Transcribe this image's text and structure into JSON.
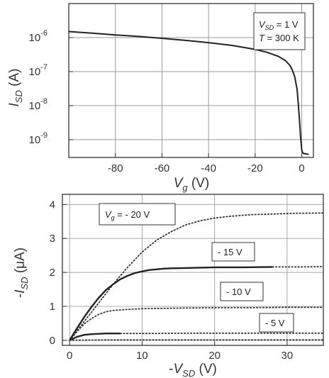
{
  "chart_data": [
    {
      "type": "line",
      "yscale": "log",
      "xlabel": {
        "main": "V",
        "sub": "g",
        "unit": " (V)"
      },
      "ylabel": {
        "main": "I",
        "sub": "SD",
        "unit": " (A)"
      },
      "xlim": [
        -100,
        5
      ],
      "ylim": [
        3e-10,
        1e-05
      ],
      "xticks": [
        -80,
        -60,
        -40,
        -20,
        0
      ],
      "yticks": [
        {
          "value": 1e-06,
          "base": "10",
          "exp": "-6"
        },
        {
          "value": 1e-07,
          "base": "10",
          "exp": "-7"
        },
        {
          "value": 1e-08,
          "base": "10",
          "exp": "-8"
        },
        {
          "value": 1e-09,
          "base": "10",
          "exp": "-9"
        }
      ],
      "grid": true,
      "annotation": {
        "line1": {
          "main": "V",
          "sub": "SD",
          "rest": " = 1 V"
        },
        "line2": {
          "main": "T",
          "rest": " = 300 K"
        }
      },
      "series": [
        {
          "style": "solid",
          "x": [
            -100,
            -90,
            -80,
            -70,
            -60,
            -50,
            -40,
            -30,
            -20,
            -15,
            -10,
            -7,
            -5,
            -4,
            -3,
            -2,
            -1.5,
            -1,
            -0.5,
            0,
            0.3,
            0.6,
            1,
            2,
            3
          ],
          "y": [
            1.5e-06,
            1.35e-06,
            1.2e-06,
            1.08e-06,
            9.5e-07,
            8.3e-07,
            7.1e-07,
            5.9e-07,
            4.5e-07,
            3.7e-07,
            2.8e-07,
            2.1e-07,
            1.5e-07,
            1.1e-07,
            7e-08,
            3e-08,
            1.2e-08,
            4e-09,
            1.2e-09,
            5e-10,
            4.2e-10,
            4e-10,
            3.9e-10,
            3.8e-10,
            3.7e-10
          ]
        }
      ]
    },
    {
      "type": "line",
      "xlabel": {
        "prefix": "-",
        "main": "V",
        "sub": "SD",
        "unit": " (V)"
      },
      "ylabel": {
        "prefix": "-",
        "main": "I",
        "sub": "SD",
        "unit": " (μA)"
      },
      "xlim": [
        -1,
        35
      ],
      "ylim": [
        -0.15,
        4.3
      ],
      "xticks": [
        0,
        10,
        20,
        30
      ],
      "yticks": [
        0,
        1,
        2,
        3,
        4
      ],
      "grid": true,
      "series": [
        {
          "label": {
            "main": "V",
            "sub": "g",
            "rest": " = - 20 V"
          },
          "dotted": {
            "x": [
              0,
              2,
              4,
              6,
              8,
              10,
              12,
              14,
              16,
              18,
              20,
              22,
              25,
              28,
              31,
              35
            ],
            "y": [
              0,
              0.55,
              1.1,
              1.65,
              2.15,
              2.6,
              2.95,
              3.2,
              3.4,
              3.52,
              3.6,
              3.65,
              3.7,
              3.72,
              3.74,
              3.75
            ]
          }
        },
        {
          "label": {
            "rest": "- 15 V"
          },
          "solid": {
            "x": [
              0,
              1,
              2,
              3,
              4,
              5,
              6,
              7,
              8,
              9,
              10,
              11,
              12,
              13,
              14,
              16,
              18,
              20,
              24,
              28
            ],
            "y": [
              0,
              0.35,
              0.68,
              0.98,
              1.25,
              1.48,
              1.65,
              1.8,
              1.9,
              1.98,
              2.03,
              2.07,
              2.09,
              2.11,
              2.12,
              2.13,
              2.14,
              2.15,
              2.15,
              2.16
            ]
          },
          "dotted": {
            "x": [
              28,
              31,
              35
            ],
            "y": [
              2.16,
              2.16,
              2.17
            ]
          }
        },
        {
          "label": {
            "rest": "- 10 V"
          },
          "dotted": {
            "x": [
              0,
              1,
              2,
              3,
              4,
              5,
              6,
              8,
              10,
              13,
              16,
              20,
              25,
              30,
              35
            ],
            "y": [
              0,
              0.25,
              0.48,
              0.64,
              0.76,
              0.84,
              0.88,
              0.91,
              0.93,
              0.94,
              0.95,
              0.96,
              0.96,
              0.97,
              0.97
            ]
          }
        },
        {
          "label": {
            "rest": "- 5 V"
          },
          "solid": {
            "x": [
              0,
              1,
              2,
              3,
              4,
              5,
              6,
              7
            ],
            "y": [
              0,
              0.1,
              0.16,
              0.18,
              0.19,
              0.2,
              0.2,
              0.2
            ]
          },
          "dotted": {
            "x": [
              7,
              12,
              18,
              24,
              30,
              35
            ],
            "y": [
              0.2,
              0.2,
              0.21,
              0.21,
              0.21,
              0.21
            ]
          }
        },
        {
          "dotted": {
            "x": [
              0,
              5,
              10,
              15,
              20,
              25,
              30,
              35
            ],
            "y": [
              0,
              0.01,
              0.01,
              0.01,
              0.01,
              0.01,
              0.01,
              0.01
            ]
          }
        }
      ]
    }
  ]
}
